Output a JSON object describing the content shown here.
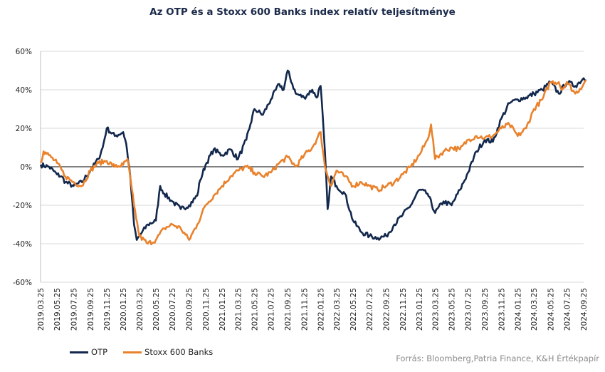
{
  "chart_data": {
    "type": "line",
    "title": "Az OTP és a Stoxx 600 Banks index relatív teljesítménye",
    "source": "Forrás: Bloomberg,Patria Finance, K&H Értékpapír",
    "ylim": [
      -60,
      60
    ],
    "y_ticks": [
      "60%",
      "40%",
      "20%",
      "0%",
      "-20%",
      "-40%",
      "-60%"
    ],
    "y_tick_values": [
      60,
      40,
      20,
      0,
      -20,
      -40,
      -60
    ],
    "x_ticks": [
      "2019.03.25",
      "2019.05.25",
      "2019.07.25",
      "2019.09.25",
      "2019.11.25",
      "2020.01.25",
      "2020.03.25",
      "2020.05.25",
      "2020.07.25",
      "2020.09.25",
      "2020.11.25",
      "2021.01.25",
      "2021.03.25",
      "2021.05.25",
      "2021.07.25",
      "2021.09.25",
      "2021.11.25",
      "2022.01.25",
      "2022.03.25",
      "2022.05.25",
      "2022.07.25",
      "2022.09.25",
      "2022.11.25",
      "2023.01.25",
      "2023.03.25",
      "2023.05.25",
      "2023.07.25",
      "2023.09.25",
      "2023.11.25",
      "2024.01.25",
      "2024.03.25",
      "2024.05.25",
      "2024.07.25",
      "2024.09.25"
    ],
    "grid": true,
    "legend_position": "bottom-left",
    "series": [
      {
        "name": "OTP",
        "color": "#12284c",
        "x": [
          "2019.03.25",
          "2019.04.25",
          "2019.05.25",
          "2019.06.10",
          "2019.06.25",
          "2019.07.25",
          "2019.08.25",
          "2019.09.25",
          "2019.10.25",
          "2019.11.10",
          "2019.11.25",
          "2019.12.25",
          "2020.01.25",
          "2020.02.05",
          "2020.02.20",
          "2020.03.05",
          "2020.03.15",
          "2020.03.25",
          "2020.04.25",
          "2020.05.25",
          "2020.06.10",
          "2020.06.25",
          "2020.07.25",
          "2020.08.25",
          "2020.09.25",
          "2020.10.25",
          "2020.11.05",
          "2020.11.25",
          "2020.12.25",
          "2021.01.25",
          "2021.02.25",
          "2021.03.25",
          "2021.04.25",
          "2021.05.10",
          "2021.05.25",
          "2021.06.25",
          "2021.07.25",
          "2021.08.25",
          "2021.09.10",
          "2021.09.25",
          "2021.10.25",
          "2021.11.25",
          "2021.12.25",
          "2022.01.10",
          "2022.01.25",
          "2022.02.10",
          "2022.02.20",
          "2022.03.05",
          "2022.03.25",
          "2022.04.25",
          "2022.05.25",
          "2022.06.25",
          "2022.07.25",
          "2022.08.25",
          "2022.09.25",
          "2022.10.25",
          "2022.11.25",
          "2022.12.25",
          "2023.01.25",
          "2023.02.25",
          "2023.03.25",
          "2023.04.25",
          "2023.05.25",
          "2023.06.25",
          "2023.07.25",
          "2023.08.25",
          "2023.09.25",
          "2023.10.25",
          "2023.11.25",
          "2023.12.25",
          "2024.01.25",
          "2024.02.25",
          "2024.03.25",
          "2024.04.25",
          "2024.05.25",
          "2024.06.25",
          "2024.07.25",
          "2024.08.25",
          "2024.09.25",
          "2024.10.05"
        ],
        "values": [
          1,
          0,
          -4,
          -5,
          -8,
          -10,
          -8,
          -2,
          4,
          10,
          20,
          16,
          18,
          12,
          -5,
          -30,
          -38,
          -36,
          -30,
          -28,
          -10,
          -14,
          -18,
          -22,
          -20,
          -15,
          -7,
          1,
          9,
          6,
          9,
          4,
          14,
          22,
          30,
          27,
          35,
          43,
          40,
          50,
          38,
          36,
          40,
          36,
          42,
          8,
          -22,
          -5,
          -10,
          -14,
          -28,
          -34,
          -36,
          -37,
          -36,
          -30,
          -25,
          -20,
          -12,
          -14,
          -24,
          -18,
          -20,
          -12,
          -3,
          8,
          14,
          13,
          25,
          33,
          35,
          36,
          38,
          40,
          44,
          38,
          44,
          42,
          46,
          45
        ]
      },
      {
        "name": "Stoxx 600 Banks",
        "color": "#e9822c",
        "x": [
          "2019.03.25",
          "2019.04.05",
          "2019.04.25",
          "2019.05.25",
          "2019.06.25",
          "2019.07.25",
          "2019.08.25",
          "2019.09.25",
          "2019.10.25",
          "2019.11.25",
          "2019.12.25",
          "2020.01.25",
          "2020.02.10",
          "2020.03.05",
          "2020.03.25",
          "2020.04.25",
          "2020.05.25",
          "2020.06.25",
          "2020.07.25",
          "2020.08.25",
          "2020.09.25",
          "2020.10.25",
          "2020.11.25",
          "2020.12.25",
          "2021.01.25",
          "2021.02.25",
          "2021.03.25",
          "2021.04.25",
          "2021.05.25",
          "2021.06.25",
          "2021.07.25",
          "2021.08.25",
          "2021.09.25",
          "2021.10.25",
          "2021.11.25",
          "2021.12.25",
          "2022.01.10",
          "2022.01.25",
          "2022.02.10",
          "2022.03.05",
          "2022.03.25",
          "2022.04.25",
          "2022.05.25",
          "2022.06.25",
          "2022.07.25",
          "2022.08.25",
          "2022.09.25",
          "2022.10.25",
          "2022.11.25",
          "2022.12.25",
          "2023.01.25",
          "2023.02.25",
          "2023.03.10",
          "2023.03.25",
          "2023.04.25",
          "2023.05.25",
          "2023.06.25",
          "2023.07.25",
          "2023.08.25",
          "2023.09.25",
          "2023.10.25",
          "2023.11.25",
          "2023.12.25",
          "2024.01.25",
          "2024.02.25",
          "2024.03.25",
          "2024.04.25",
          "2024.05.25",
          "2024.06.25",
          "2024.07.05",
          "2024.07.25",
          "2024.08.25",
          "2024.09.25",
          "2024.10.05"
        ],
        "values": [
          2,
          8,
          6,
          2,
          -5,
          -8,
          -10,
          -2,
          2,
          3,
          0,
          1,
          4,
          -20,
          -36,
          -40,
          -38,
          -32,
          -30,
          -32,
          -38,
          -30,
          -20,
          -15,
          -10,
          -5,
          -2,
          0,
          -3,
          -5,
          -3,
          2,
          5,
          0,
          6,
          10,
          14,
          18,
          0,
          -10,
          -2,
          -5,
          -10,
          -8,
          -10,
          -12,
          -10,
          -8,
          -4,
          0,
          6,
          14,
          22,
          4,
          8,
          10,
          9,
          14,
          16,
          15,
          16,
          20,
          22,
          16,
          20,
          30,
          35,
          44,
          44,
          40,
          44,
          38,
          43,
          45
        ]
      }
    ]
  }
}
